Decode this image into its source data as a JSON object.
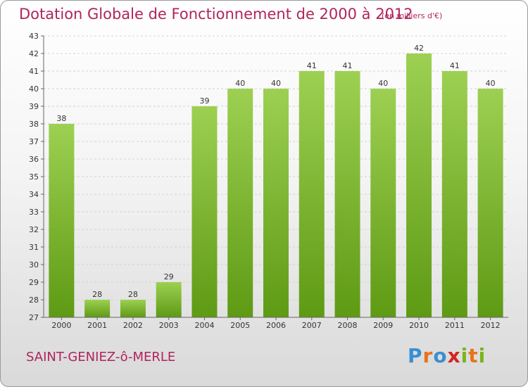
{
  "header": {
    "title": "Dotation Globale de Fonctionnement de 2000 à 2012",
    "unit": "(en milliers d'€)"
  },
  "footer": {
    "commune": "SAINT-GENIEZ-ô-MERLE",
    "logo": [
      "P",
      "r",
      "o",
      "x",
      "i",
      "t",
      "i"
    ],
    "logo_colors": [
      "#3a8fd1",
      "#e8731a",
      "#3a8fd1",
      "#d4231f",
      "#7ab51d",
      "#e8731a",
      "#7ab51d"
    ]
  },
  "chart_data": {
    "type": "bar",
    "title": "Dotation Globale de Fonctionnement de 2000 à 2012",
    "xlabel": "",
    "ylabel": "",
    "categories": [
      "2000",
      "2001",
      "2002",
      "2003",
      "2004",
      "2005",
      "2006",
      "2007",
      "2008",
      "2009",
      "2010",
      "2011",
      "2012"
    ],
    "values": [
      38,
      28,
      28,
      29,
      39,
      40,
      40,
      41,
      41,
      40,
      42,
      41,
      40
    ],
    "ylim": [
      27,
      43
    ],
    "yticks": [
      27,
      28,
      29,
      30,
      31,
      32,
      33,
      34,
      35,
      36,
      37,
      38,
      39,
      40,
      41,
      42,
      43
    ],
    "grid": true,
    "bar_color_light": "#9dd052",
    "bar_color_dark": "#5e9a14"
  }
}
